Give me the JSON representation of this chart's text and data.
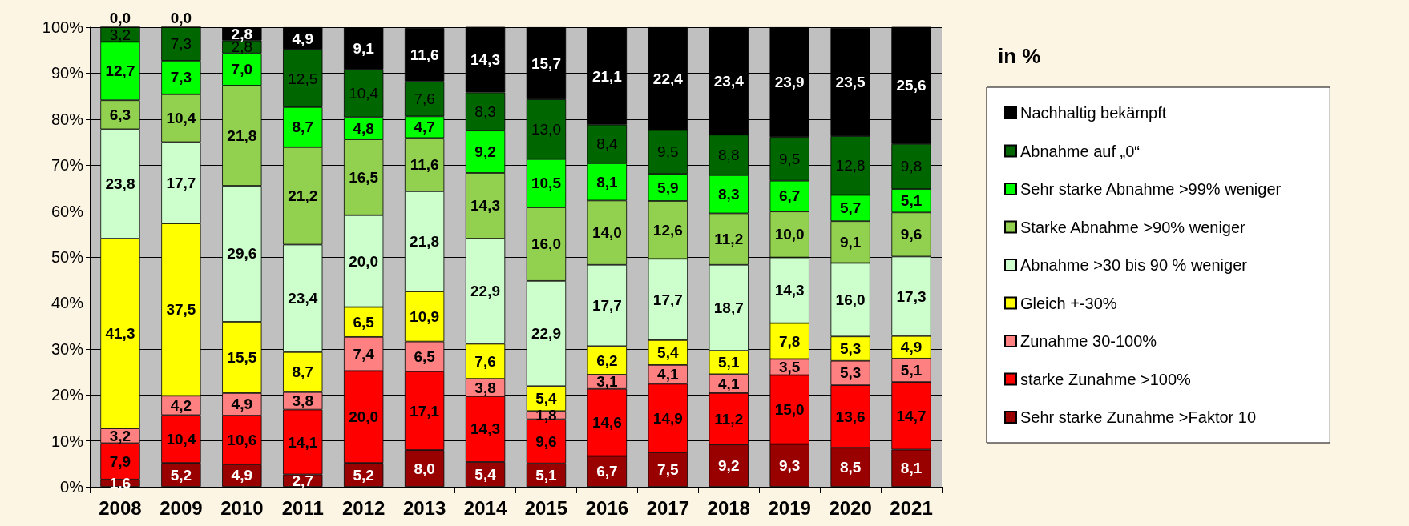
{
  "chart_data": {
    "type": "bar",
    "stacked": true,
    "legend_title": "in %",
    "legend": "right",
    "grid": "y",
    "data_labels": true,
    "categories": [
      "2008",
      "2009",
      "2010",
      "2011",
      "2012",
      "2013",
      "2014",
      "2015",
      "2016",
      "2017",
      "2018",
      "2019",
      "2020",
      "2021"
    ],
    "ylim": [
      0,
      100
    ],
    "yticks": [
      {
        "value": 0,
        "label": "0%"
      },
      {
        "value": 10,
        "label": "10%"
      },
      {
        "value": 20,
        "label": "20%"
      },
      {
        "value": 30,
        "label": "30%"
      },
      {
        "value": 40,
        "label": "40%"
      },
      {
        "value": 50,
        "label": "50%"
      },
      {
        "value": 60,
        "label": "60%"
      },
      {
        "value": 70,
        "label": "70%"
      },
      {
        "value": 80,
        "label": "80%"
      },
      {
        "value": 90,
        "label": "90%"
      },
      {
        "value": 100,
        "label": "100%"
      }
    ],
    "series": [
      {
        "name": "Sehr starke Zunahme >Faktor 10",
        "color": "#990000",
        "values": [
          1.6,
          5.2,
          4.9,
          2.7,
          5.2,
          8.0,
          5.4,
          5.1,
          6.7,
          7.5,
          9.2,
          9.3,
          8.5,
          8.1
        ],
        "value_labels": [
          "1,6",
          "5,2",
          "4,9",
          "2,7",
          "5,2",
          "8,0",
          "5,4",
          "5,1",
          "6,7",
          "7,5",
          "9,2",
          "9,3",
          "8,5",
          "8,1"
        ]
      },
      {
        "name": "starke Zunahme >100%",
        "color": "#ff0000",
        "values": [
          7.9,
          10.4,
          10.6,
          14.1,
          20.0,
          17.1,
          14.3,
          9.6,
          14.6,
          14.9,
          11.2,
          15.0,
          13.6,
          14.7
        ],
        "value_labels": [
          "7,9",
          "10,4",
          "10,6",
          "14,1",
          "20,0",
          "17,1",
          "14,3",
          "9,6",
          "14,6",
          "14,9",
          "11,2",
          "15,0",
          "13,6",
          "14,7"
        ]
      },
      {
        "name": "Zunahme 30-100%",
        "color": "#ff8080",
        "values": [
          3.2,
          4.2,
          4.9,
          3.8,
          7.4,
          6.5,
          3.8,
          1.8,
          3.1,
          4.1,
          4.1,
          3.5,
          5.3,
          5.1
        ],
        "value_labels": [
          "3,2",
          "4,2",
          "4,9",
          "3,8",
          "7,4",
          "6,5",
          "3,8",
          "1,8",
          "3,1",
          "4,1",
          "4,1",
          "3,5",
          "5,3",
          "5,1"
        ]
      },
      {
        "name": "Gleich +-30%",
        "color": "#ffff00",
        "values": [
          41.3,
          37.5,
          15.5,
          8.7,
          6.5,
          10.9,
          7.6,
          5.4,
          6.2,
          5.4,
          5.1,
          7.8,
          5.3,
          4.9
        ],
        "value_labels": [
          "41,3",
          "37,5",
          "15,5",
          "8,7",
          "6,5",
          "10,9",
          "7,6",
          "5,4",
          "6,2",
          "5,4",
          "5,1",
          "7,8",
          "5,3",
          "4,9"
        ]
      },
      {
        "name": "Abnahme >30 bis 90 % weniger",
        "color": "#ccffcc",
        "values": [
          23.8,
          17.7,
          29.6,
          23.4,
          20.0,
          21.8,
          22.9,
          22.9,
          17.7,
          17.7,
          18.7,
          14.3,
          16.0,
          17.3
        ],
        "value_labels": [
          "23,8",
          "17,7",
          "29,6",
          "23,4",
          "20,0",
          "21,8",
          "22,9",
          "22,9",
          "17,7",
          "17,7",
          "18,7",
          "14,3",
          "16,0",
          "17,3"
        ]
      },
      {
        "name": "Starke Abnahme >90% weniger",
        "color": "#92d050",
        "values": [
          6.3,
          10.4,
          21.8,
          21.2,
          16.5,
          11.6,
          14.3,
          16.0,
          14.0,
          12.6,
          11.2,
          10.0,
          9.1,
          9.6
        ],
        "value_labels": [
          "6,3",
          "10,4",
          "21,8",
          "21,2",
          "16,5",
          "11,6",
          "14,3",
          "16,0",
          "14,0",
          "12,6",
          "11,2",
          "10,0",
          "9,1",
          "9,6"
        ]
      },
      {
        "name": "Sehr starke Abnahme >99% weniger",
        "color": "#00ff00",
        "values": [
          12.7,
          7.3,
          7.0,
          8.7,
          4.8,
          4.7,
          9.2,
          10.5,
          8.1,
          5.9,
          8.3,
          6.7,
          5.7,
          5.1
        ],
        "value_labels": [
          "12,7",
          "7,3",
          "7,0",
          "8,7",
          "4,8",
          "4,7",
          "9,2",
          "10,5",
          "8,1",
          "5,9",
          "8,3",
          "6,7",
          "5,7",
          "5,1"
        ]
      },
      {
        "name": "Abnahme auf „0“",
        "color": "#006600",
        "values": [
          3.2,
          7.3,
          2.8,
          12.5,
          10.4,
          7.6,
          8.3,
          13.0,
          8.4,
          9.5,
          8.8,
          9.5,
          12.8,
          9.8
        ],
        "value_labels": [
          "3,2",
          "7,3",
          "2,8",
          "12,5",
          "10,4",
          "7,6",
          "8,3",
          "13,0",
          "8,4",
          "9,5",
          "8,8",
          "9,5",
          "12,8",
          "9,8"
        ]
      },
      {
        "name": "Nachhaltig bekämpft",
        "color": "#000000",
        "values": [
          0.0,
          0.0,
          2.8,
          4.9,
          9.1,
          11.6,
          14.3,
          15.7,
          21.1,
          22.4,
          23.4,
          23.9,
          23.5,
          25.6
        ],
        "value_labels": [
          "0,0",
          "0,0",
          "2,8",
          "4,9",
          "9,1",
          "11,6",
          "14,3",
          "15,7",
          "21,1",
          "22,4",
          "23,4",
          "23,9",
          "23,5",
          "25,6"
        ]
      }
    ]
  }
}
